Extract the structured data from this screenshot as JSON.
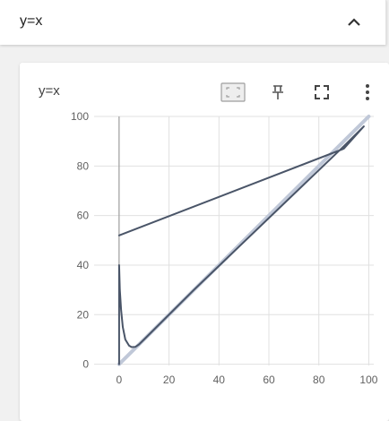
{
  "section": {
    "title": "y=x"
  },
  "card": {
    "title": "y=x"
  },
  "icons": {
    "collapse": "chevron-up-icon",
    "fit_domain": "fit-domain-icon",
    "pin": "pin-icon",
    "fullscreen": "fullscreen-icon",
    "more": "more-vert-icon"
  },
  "colors": {
    "line_main": "#4a5568",
    "line_reference": "#c0c8d8",
    "axis": "#9e9e9e",
    "grid": "#e0e0e0"
  },
  "chart_data": {
    "type": "line",
    "title": "y=x",
    "xlim": [
      -10,
      102
    ],
    "ylim": [
      -0.5,
      100
    ],
    "x_ticks": [
      0,
      20,
      40,
      60,
      80,
      100
    ],
    "y_ticks": [
      0,
      20,
      40,
      60,
      80,
      100
    ],
    "grid": true,
    "series": [
      {
        "style": "reference",
        "x": [
          0,
          100
        ],
        "y": [
          0,
          100
        ]
      },
      {
        "style": "main",
        "x": [
          0,
          0,
          0.3,
          0.8,
          1.5,
          2.5,
          4,
          5,
          6.5,
          8,
          10,
          30,
          60,
          90,
          98,
          90,
          0
        ],
        "y": [
          0,
          40,
          30,
          22,
          15,
          10,
          7.5,
          6.9,
          7,
          8,
          10,
          30,
          59,
          88,
          96,
          87,
          52
        ]
      }
    ]
  }
}
